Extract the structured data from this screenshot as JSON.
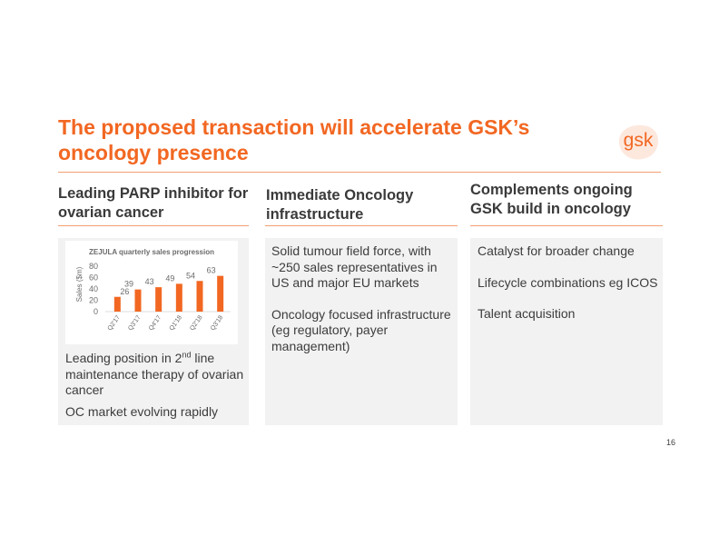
{
  "slide": {
    "title": "The proposed transaction will accelerate GSK’s oncology presence",
    "logo_text": "gsk",
    "page_number": "16",
    "accent_color": "#f26722"
  },
  "columns": [
    {
      "heading": "Leading PARP inhibitor for ovarian cancer",
      "points": [
        {
          "before": "Leading position in 2",
          "sup": "nd",
          "after": " line maintenance therapy of ovarian cancer"
        },
        {
          "text": "OC market evolving rapidly"
        }
      ]
    },
    {
      "heading": "Immediate Oncology infrastructure",
      "points": [
        {
          "text": "Solid tumour field force, with ~250 sales representatives in US and major EU markets"
        },
        {
          "text": "Oncology focused infrastructure (eg regulatory, payer management)"
        }
      ]
    },
    {
      "heading": "Complements ongoing GSK build in oncology",
      "points": [
        {
          "text": "Catalyst for broader change"
        },
        {
          "text": "Lifecycle combinations eg ICOS"
        },
        {
          "text": "Talent acquisition"
        }
      ]
    }
  ],
  "chart_data": {
    "type": "bar",
    "title": "ZEJULA quarterly sales progression",
    "ylabel": "Sales ($m)",
    "xlabel": "",
    "categories": [
      "Q2'17",
      "Q3'17",
      "Q4'17",
      "Q1'18",
      "Q2'18",
      "Q3'18"
    ],
    "values": [
      26,
      39,
      43,
      49,
      54,
      63
    ],
    "ylim": [
      0,
      80
    ],
    "yticks": [
      0,
      20,
      40,
      60,
      80
    ],
    "grid": false,
    "bar_color": "#f26722"
  }
}
